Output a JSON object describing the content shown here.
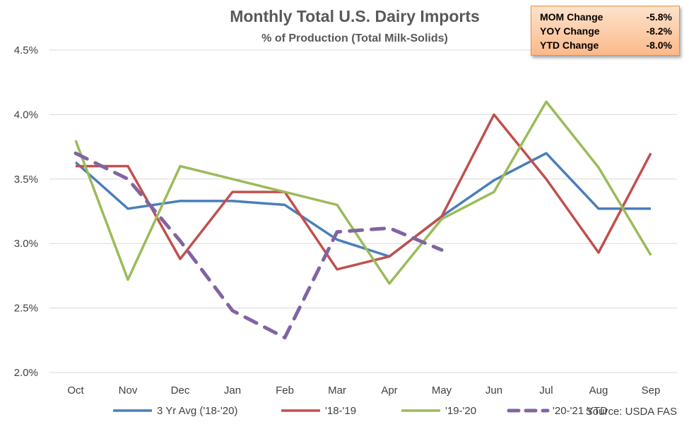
{
  "chart_data": {
    "type": "line",
    "title": "Monthly Total U.S. Dairy Imports",
    "subtitle": "% of Production  (Total Milk-Solids)",
    "categories": [
      "Oct",
      "Nov",
      "Dec",
      "Jan",
      "Feb",
      "Mar",
      "Apr",
      "May",
      "Jun",
      "Jul",
      "Aug",
      "Sep"
    ],
    "y_ticks": [
      "2.0%",
      "2.5%",
      "3.0%",
      "3.5%",
      "4.0%",
      "4.5%"
    ],
    "ylim": [
      2.0,
      4.5
    ],
    "grid": "horizontal",
    "legend_position": "bottom",
    "series": [
      {
        "name": "3 Yr Avg ('18-'20)",
        "color": "#4a7ebb",
        "dashed": false,
        "values": [
          3.63,
          3.27,
          3.33,
          3.33,
          3.3,
          3.03,
          2.9,
          3.21,
          3.49,
          3.7,
          3.27,
          3.27
        ]
      },
      {
        "name": "'18-'19",
        "color": "#c0504d",
        "dashed": false,
        "values": [
          3.6,
          3.6,
          2.88,
          3.4,
          3.4,
          2.8,
          2.9,
          3.21,
          4.0,
          3.5,
          2.93,
          3.7
        ]
      },
      {
        "name": "'19-'20",
        "color": "#9bbb59",
        "dashed": false,
        "values": [
          3.8,
          2.72,
          3.6,
          3.5,
          3.4,
          3.3,
          2.69,
          3.19,
          3.4,
          4.1,
          3.59,
          2.91
        ]
      },
      {
        "name": "'20-'21 YTD",
        "color": "#8064a2",
        "dashed": true,
        "values": [
          3.7,
          3.5,
          3.02,
          2.48,
          2.27,
          3.09,
          3.12,
          2.95,
          null,
          null,
          null,
          null
        ]
      }
    ],
    "source": "Source: USDA FAS"
  },
  "changes": [
    {
      "label": "MOM Change",
      "value": "-5.8%"
    },
    {
      "label": "YOY Change",
      "value": "-8.2%"
    },
    {
      "label": "YTD Change",
      "value": "-8.0%"
    }
  ]
}
